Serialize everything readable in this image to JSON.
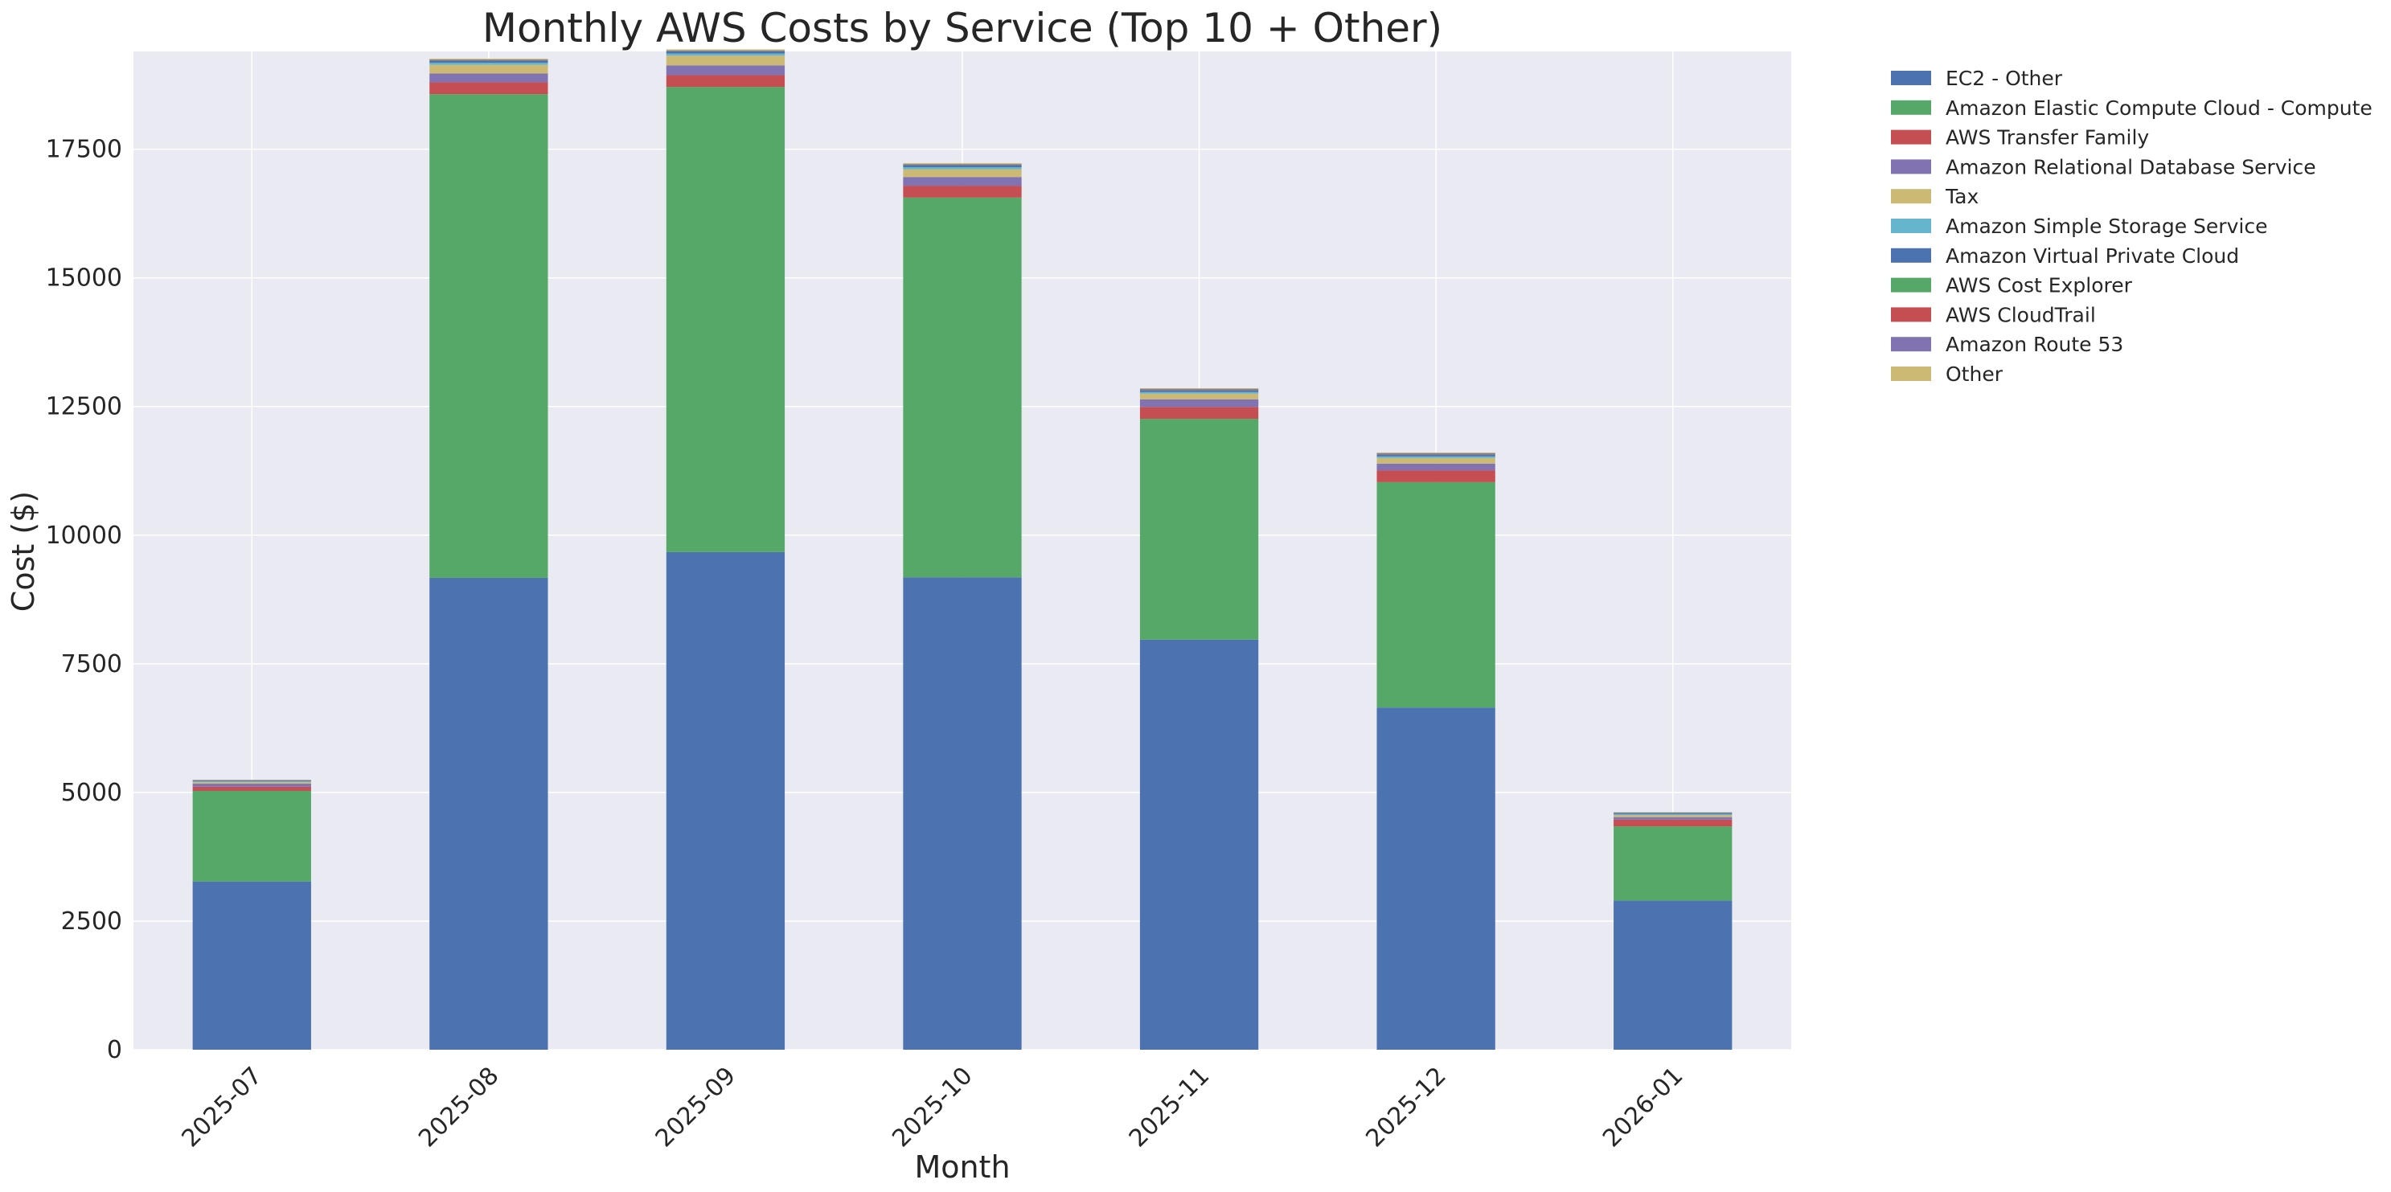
{
  "chart_data": {
    "type": "bar",
    "stacked": true,
    "title": "Monthly AWS Costs by Service (Top 10 + Other)",
    "xlabel": "Month",
    "ylabel": "Cost ($)",
    "ylim": [
      0,
      19400
    ],
    "yticks": [
      0,
      2500,
      5000,
      7500,
      10000,
      12500,
      15000,
      17500
    ],
    "grid": true,
    "legend_position": "outside-right-top",
    "categories": [
      "2025-07",
      "2025-08",
      "2025-09",
      "2025-10",
      "2025-11",
      "2025-12",
      "2026-01"
    ],
    "series": [
      {
        "name": "EC2 - Other",
        "color": "#4C72B0",
        "values": [
          3270,
          9170,
          9670,
          9180,
          7970,
          6650,
          2900
        ]
      },
      {
        "name": "Amazon Elastic Compute Cloud - Compute",
        "color": "#55A868",
        "values": [
          1760,
          9400,
          9040,
          7380,
          4290,
          4380,
          1440
        ]
      },
      {
        "name": "AWS Transfer Family",
        "color": "#C44E52",
        "values": [
          80,
          230,
          230,
          230,
          230,
          230,
          130
        ]
      },
      {
        "name": "Amazon Relational Database Service",
        "color": "#8172B2",
        "values": [
          60,
          170,
          190,
          170,
          150,
          130,
          50
        ]
      },
      {
        "name": "Tax",
        "color": "#CCB974",
        "values": [
          30,
          170,
          190,
          150,
          110,
          110,
          40
        ]
      },
      {
        "name": "Amazon Simple Storage Service",
        "color": "#64B5CD",
        "values": [
          15,
          40,
          40,
          40,
          30,
          30,
          20
        ]
      },
      {
        "name": "Amazon Virtual Private Cloud",
        "color": "#4C72B0",
        "values": [
          15,
          40,
          40,
          40,
          40,
          40,
          20
        ]
      },
      {
        "name": "AWS Cost Explorer",
        "color": "#55A868",
        "values": [
          5,
          10,
          10,
          10,
          10,
          10,
          5
        ]
      },
      {
        "name": "AWS CloudTrail",
        "color": "#C44E52",
        "values": [
          5,
          10,
          10,
          10,
          10,
          10,
          5
        ]
      },
      {
        "name": "Amazon Route 53",
        "color": "#8172B2",
        "values": [
          3,
          5,
          5,
          5,
          5,
          5,
          3
        ]
      },
      {
        "name": "Other",
        "color": "#CCB974",
        "values": [
          5,
          15,
          15,
          15,
          10,
          10,
          5
        ]
      }
    ],
    "colors": {
      "plot_background": "#EAEAF2",
      "grid": "#FFFFFF",
      "text": "#262626"
    }
  }
}
